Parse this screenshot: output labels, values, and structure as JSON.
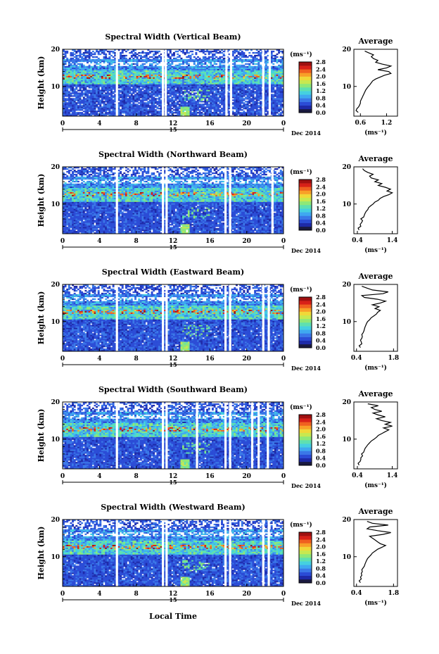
{
  "chart_data": {
    "type": "heatmap",
    "shared": {
      "xlabel": "Local Time",
      "xticks": [
        "0",
        "4",
        "8",
        "12",
        "16",
        "20",
        "0"
      ],
      "xlim": [
        0,
        24
      ],
      "day_label": "15",
      "date_label": "Dec 2014",
      "ylabel": "Height (km)",
      "yticks": [
        "20",
        "10"
      ],
      "ylim": [
        2,
        20
      ],
      "colorbar_unit": "(ms⁻¹)",
      "colorbar_ticks": [
        "2.8",
        "2.4",
        "2.0",
        "1.6",
        "1.2",
        "0.8",
        "0.4",
        "0.0"
      ],
      "colorbar_range": [
        0,
        2.8
      ],
      "colors": [
        "#1a1a40",
        "#1e2aa8",
        "#2b4cd6",
        "#3a78e8",
        "#3fa8f0",
        "#45d0e0",
        "#5ee0b0",
        "#8ee878",
        "#c8e850",
        "#f0d838",
        "#f8a028",
        "#f06020",
        "#d82018",
        "#a01010"
      ],
      "average_title": "Average",
      "average_unit": "(ms⁻¹)",
      "average_yticks": [
        "20",
        "10"
      ]
    },
    "panels": [
      {
        "title": "Spectral Width (Vertical Beam)",
        "avg_xticks": [
          "0.6",
          "1.2"
        ],
        "avg_xlim": [
          0.45,
          1.45
        ],
        "gaps": [
          5.9,
          10.9,
          11.2,
          17.8,
          18.3,
          21.8,
          22.5
        ],
        "heights": [
          3,
          3.5,
          4,
          4.5,
          5,
          5.5,
          6,
          6.5,
          7,
          7.5,
          8,
          8.5,
          9,
          9.5,
          10,
          10.5,
          11,
          11.5,
          12,
          12.5,
          13,
          13.5,
          14,
          14.5,
          15,
          15.5,
          16,
          16.5,
          17,
          17.5,
          18,
          18.5,
          19,
          19.5
        ],
        "avg_values": [
          0.55,
          0.5,
          0.52,
          0.56,
          0.58,
          0.6,
          0.6,
          0.62,
          0.64,
          0.66,
          0.68,
          0.7,
          0.72,
          0.75,
          0.78,
          0.82,
          0.85,
          0.88,
          0.95,
          1.05,
          1.15,
          1.3,
          1.25,
          1.0,
          1.2,
          1.3,
          1.1,
          0.95,
          1.0,
          0.9,
          0.85,
          0.9,
          0.8,
          0.7
        ]
      },
      {
        "title": "Spectral Width (Northward Beam)",
        "avg_xticks": [
          "0.4",
          "1.4"
        ],
        "avg_xlim": [
          0.3,
          1.55
        ],
        "gaps": [
          5.9,
          10.9,
          11.3,
          17.7,
          18.2,
          22.8
        ],
        "heights": [
          3,
          3.5,
          4,
          4.5,
          5,
          5.5,
          6,
          6.5,
          7,
          7.5,
          8,
          8.5,
          9,
          9.5,
          10,
          10.5,
          11,
          11.5,
          12,
          12.5,
          13,
          13.5,
          14,
          14.5,
          15,
          15.5,
          16,
          16.5,
          17,
          17.5,
          18,
          18.5,
          19,
          19.5
        ],
        "avg_values": [
          0.45,
          0.42,
          0.5,
          0.48,
          0.52,
          0.55,
          0.5,
          0.58,
          0.6,
          0.62,
          0.65,
          0.7,
          0.72,
          0.78,
          0.85,
          0.9,
          1.0,
          1.05,
          1.15,
          1.3,
          1.4,
          1.25,
          1.35,
          1.2,
          1.0,
          1.1,
          0.9,
          1.0,
          0.8,
          0.75,
          0.85,
          0.7,
          0.6,
          0.55
        ]
      },
      {
        "title": "Spectral Width (Eastward Beam)",
        "avg_xticks": [
          "0.4",
          "1.8"
        ],
        "avg_xlim": [
          0.3,
          1.95
        ],
        "gaps": [
          5.9,
          10.9,
          11.3,
          17.7,
          18.2,
          21.8,
          22.4
        ],
        "heights": [
          3,
          3.5,
          4,
          4.5,
          5,
          5.5,
          6,
          6.5,
          7,
          7.5,
          8,
          8.5,
          9,
          9.5,
          10,
          10.5,
          11,
          11.5,
          12,
          12.5,
          13,
          13.5,
          14,
          14.5,
          15,
          15.5,
          16,
          16.5,
          17,
          17.5,
          18,
          18.5,
          19,
          19.5
        ],
        "avg_values": [
          0.55,
          0.5,
          0.6,
          0.58,
          0.55,
          0.6,
          0.62,
          0.6,
          0.65,
          0.68,
          0.7,
          0.72,
          0.75,
          0.78,
          0.82,
          0.9,
          0.95,
          1.05,
          1.15,
          1.2,
          1.3,
          1.1,
          1.25,
          1.0,
          1.3,
          1.5,
          1.2,
          0.7,
          0.6,
          1.4,
          1.6,
          1.0,
          0.8,
          0.6
        ]
      },
      {
        "title": "Spectral Width (Southward Beam)",
        "avg_xticks": [
          "0.4",
          "1.4"
        ],
        "avg_xlim": [
          0.3,
          1.55
        ],
        "gaps": [
          5.9,
          10.9,
          11.3,
          14.6,
          17.7,
          18.2,
          20.6,
          21.3,
          22.3
        ],
        "heights": [
          3,
          3.5,
          4,
          4.5,
          5,
          5.5,
          6,
          6.5,
          7,
          7.5,
          8,
          8.5,
          9,
          9.5,
          10,
          10.5,
          11,
          11.5,
          12,
          12.5,
          13,
          13.5,
          14,
          14.5,
          15,
          15.5,
          16,
          16.5,
          17,
          17.5,
          18,
          18.5,
          19,
          19.5
        ],
        "avg_values": [
          0.45,
          0.42,
          0.48,
          0.5,
          0.5,
          0.55,
          0.52,
          0.58,
          0.6,
          0.62,
          0.66,
          0.7,
          0.75,
          0.8,
          0.88,
          0.95,
          1.0,
          1.1,
          1.2,
          1.3,
          1.15,
          1.4,
          1.2,
          1.35,
          1.1,
          0.95,
          1.2,
          1.0,
          0.85,
          1.1,
          0.9,
          0.8,
          1.0,
          0.7
        ]
      },
      {
        "title": "Spectral Width (Westward Beam)",
        "avg_xticks": [
          "0.4",
          "1.8"
        ],
        "avg_xlim": [
          0.3,
          1.95
        ],
        "gaps": [
          5.9,
          10.9,
          11.3,
          17.7,
          18.2,
          21.8,
          22.4
        ],
        "heights": [
          3,
          3.5,
          4,
          4.5,
          5,
          5.5,
          6,
          6.5,
          7,
          7.5,
          8,
          8.5,
          9,
          9.5,
          10,
          10.5,
          11,
          11.5,
          12,
          12.5,
          13,
          13.5,
          14,
          14.5,
          15,
          15.5,
          16,
          16.5,
          17,
          17.5,
          18,
          18.5,
          19,
          19.5
        ],
        "avg_values": [
          0.55,
          0.5,
          0.58,
          0.55,
          0.6,
          0.58,
          0.62,
          0.6,
          0.65,
          0.7,
          0.72,
          0.75,
          0.78,
          0.82,
          0.88,
          0.95,
          1.0,
          1.1,
          1.2,
          1.35,
          1.5,
          1.3,
          1.2,
          1.1,
          1.0,
          0.9,
          1.4,
          1.7,
          1.2,
          0.8,
          0.9,
          1.6,
          1.0,
          0.8
        ]
      }
    ]
  }
}
